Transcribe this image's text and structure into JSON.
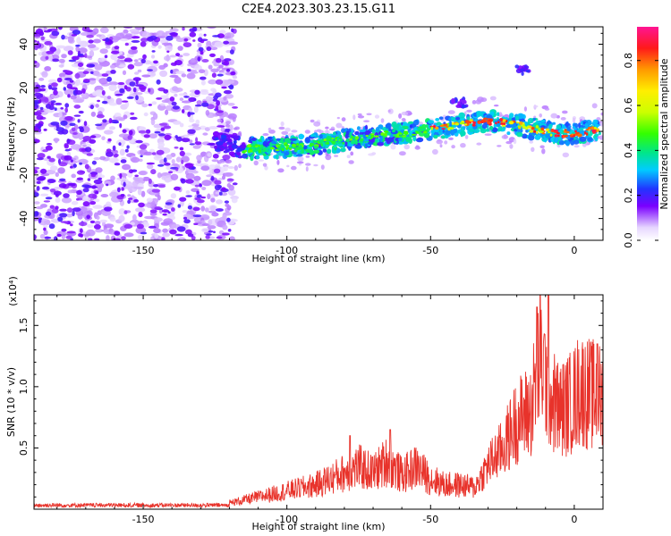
{
  "figure": {
    "title": "C2E4.2023.303.23.15.G11"
  },
  "chart_data": [
    {
      "type": "heatmap",
      "xlabel": "Height of straight line (km)",
      "ylabel": "Frequency (Hz)",
      "xlim": [
        -188,
        10
      ],
      "ylim": [
        -50,
        48
      ],
      "xticks": [
        -150,
        -100,
        -50,
        0
      ],
      "yticks": [
        -40,
        -20,
        0,
        20,
        40
      ],
      "colorbar": {
        "label": "Normalized spectral amplitude",
        "range": [
          0,
          0.95
        ],
        "ticks": [
          0.0,
          0.2,
          0.4,
          0.6,
          0.8
        ]
      },
      "ridge": {
        "x": [
          -125,
          -115,
          -100,
          -90,
          -80,
          -70,
          -60,
          -50,
          -40,
          -30,
          -20,
          -10,
          -5,
          0,
          8
        ],
        "y": [
          -4,
          -8,
          -7,
          -6,
          -4,
          -2,
          -1,
          1,
          3,
          5,
          3,
          0,
          -1,
          -1,
          1
        ]
      },
      "noise_region_x": [
        -188,
        -118
      ],
      "isolated_features": [
        {
          "x": -40,
          "y": 13
        },
        {
          "x": -18,
          "y": 28
        }
      ],
      "grid": false
    },
    {
      "type": "line",
      "xlabel": "Height of straight line (km)",
      "ylabel": "SNR (10 * v/v)",
      "y_multiplier": "(x10⁴)",
      "xlim": [
        -188,
        10
      ],
      "ylim": [
        0,
        1.75
      ],
      "xticks": [
        -150,
        -100,
        -50,
        0
      ],
      "yticks": [
        0.5,
        1.0,
        1.5
      ],
      "ytick_labels": [
        "0.5",
        "1.0",
        "1.5"
      ],
      "color": "#e8332b",
      "grid": false,
      "series": [
        {
          "x": [
            -188,
            -160,
            -140,
            -120,
            -110,
            -100,
            -90,
            -80,
            -75,
            -70,
            -65,
            -60,
            -55,
            -50,
            -45,
            -40,
            -35,
            -30,
            -25,
            -20,
            -15,
            -12,
            -10,
            -8,
            -5,
            -2,
            0,
            2,
            5,
            10
          ],
          "y": [
            0.03,
            0.03,
            0.03,
            0.05,
            0.1,
            0.15,
            0.2,
            0.3,
            0.35,
            0.3,
            0.4,
            0.28,
            0.35,
            0.25,
            0.2,
            0.2,
            0.18,
            0.4,
            0.55,
            0.8,
            0.9,
            1.4,
            1.2,
            1.0,
            0.9,
            0.95,
            1.0,
            1.1,
            1.05,
            1.0
          ],
          "peaks": [
            {
              "x": -78,
              "y": 0.6
            },
            {
              "x": -64,
              "y": 0.65
            },
            {
              "x": -13,
              "y": 1.65
            },
            {
              "x": -9,
              "y": 1.75
            },
            {
              "x": 8,
              "y": 1.35
            }
          ]
        }
      ]
    }
  ]
}
